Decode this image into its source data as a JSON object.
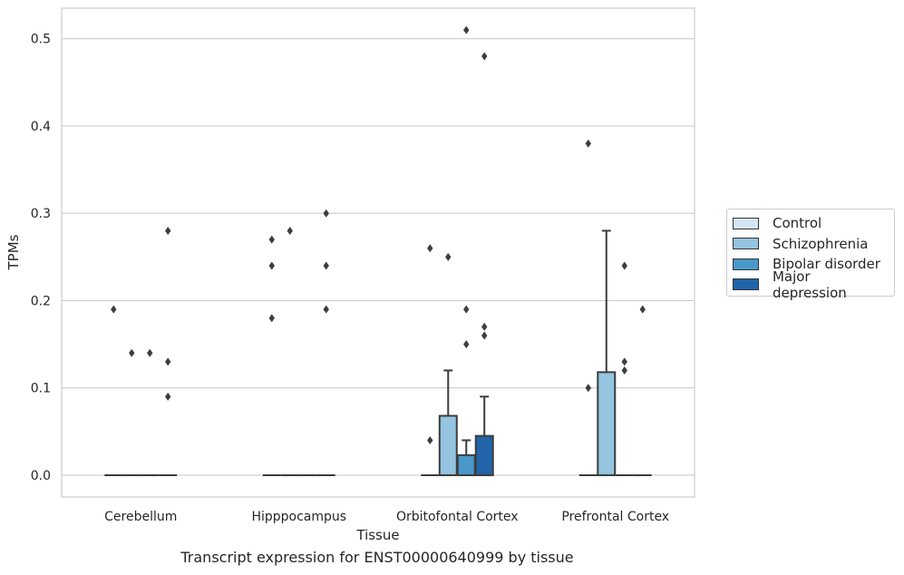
{
  "chart_data": {
    "type": "box",
    "xlabel": "Tissue",
    "ylabel": "TPMs",
    "caption": "Transcript expression for ENST00000640999 by tissue",
    "categories": [
      "Cerebellum",
      "Hipppocampus",
      "Orbitofontal Cortex",
      "Prefrontal Cortex"
    ],
    "ylim": [
      -0.025,
      0.535
    ],
    "yticks": [
      "0.0",
      "0.1",
      "0.2",
      "0.3",
      "0.4",
      "0.5"
    ],
    "grid": true,
    "legend_position": "right",
    "series": [
      {
        "name": "Control",
        "color": "#d5e5f4",
        "boxes": [
          {
            "q1": 0,
            "median": 0,
            "q3": 0,
            "whisker_low": 0,
            "whisker_high": 0,
            "outliers": [
              0.19
            ]
          },
          {
            "q1": 0,
            "median": 0,
            "q3": 0,
            "whisker_low": 0,
            "whisker_high": 0,
            "outliers": [
              0.27,
              0.24,
              0.18
            ]
          },
          {
            "q1": 0,
            "median": 0,
            "q3": 0,
            "whisker_low": 0,
            "whisker_high": 0,
            "outliers": [
              0.26,
              0.04
            ]
          },
          {
            "q1": 0,
            "median": 0,
            "q3": 0,
            "whisker_low": 0,
            "whisker_high": 0,
            "outliers": [
              0.38,
              0.1
            ]
          }
        ]
      },
      {
        "name": "Schizophrenia",
        "color": "#94c4df",
        "boxes": [
          {
            "q1": 0,
            "median": 0,
            "q3": 0,
            "whisker_low": 0,
            "whisker_high": 0,
            "outliers": [
              0.14
            ]
          },
          {
            "q1": 0,
            "median": 0,
            "q3": 0,
            "whisker_low": 0,
            "whisker_high": 0,
            "outliers": [
              0.28
            ]
          },
          {
            "q1": 0,
            "median": 0,
            "q3": 0.068,
            "whisker_low": 0,
            "whisker_high": 0.12,
            "outliers": [
              0.25
            ]
          },
          {
            "q1": 0,
            "median": 0,
            "q3": 0.118,
            "whisker_low": 0,
            "whisker_high": 0.28,
            "outliers": []
          }
        ]
      },
      {
        "name": "Bipolar disorder",
        "color": "#4a98c9",
        "boxes": [
          {
            "q1": 0,
            "median": 0,
            "q3": 0,
            "whisker_low": 0,
            "whisker_high": 0,
            "outliers": [
              0.14
            ]
          },
          {
            "q1": 0,
            "median": 0,
            "q3": 0,
            "whisker_low": 0,
            "whisker_high": 0,
            "outliers": []
          },
          {
            "q1": 0,
            "median": 0,
            "q3": 0.023,
            "whisker_low": 0,
            "whisker_high": 0.04,
            "outliers": [
              0.51,
              0.19,
              0.15
            ]
          },
          {
            "q1": 0,
            "median": 0,
            "q3": 0,
            "whisker_low": 0,
            "whisker_high": 0,
            "outliers": [
              0.24,
              0.13,
              0.12
            ]
          }
        ]
      },
      {
        "name": "Major depression",
        "color": "#2164a9",
        "boxes": [
          {
            "q1": 0,
            "median": 0,
            "q3": 0,
            "whisker_low": 0,
            "whisker_high": 0,
            "outliers": [
              0.28,
              0.13,
              0.09
            ]
          },
          {
            "q1": 0,
            "median": 0,
            "q3": 0,
            "whisker_low": 0,
            "whisker_high": 0,
            "outliers": [
              0.3,
              0.24,
              0.19
            ]
          },
          {
            "q1": 0,
            "median": 0,
            "q3": 0.045,
            "whisker_low": 0,
            "whisker_high": 0.09,
            "outliers": [
              0.48,
              0.17,
              0.16
            ]
          },
          {
            "q1": 0,
            "median": 0,
            "q3": 0,
            "whisker_low": 0,
            "whisker_high": 0,
            "outliers": [
              0.19
            ]
          }
        ]
      }
    ]
  }
}
